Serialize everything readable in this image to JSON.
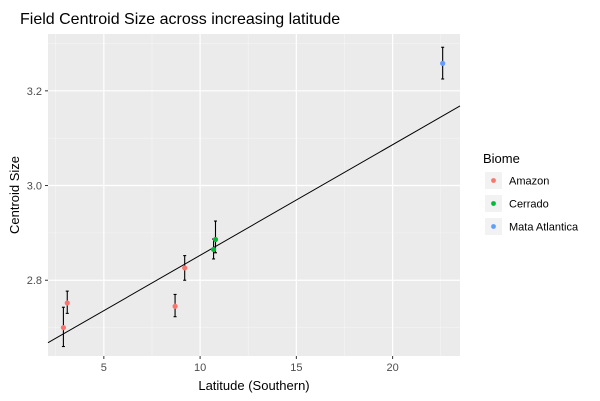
{
  "chart_data": {
    "type": "scatter",
    "title": "Field Centroid Size across increasing latitude",
    "xlabel": "Latitude (Southern)",
    "ylabel": "Centroid Size",
    "xlim": [
      2.1,
      23.5
    ],
    "ylim": [
      2.64,
      3.32
    ],
    "xticks": [
      5,
      10,
      15,
      20
    ],
    "yticks": [
      2.8,
      3.0,
      3.2
    ],
    "ytick_labels": [
      "2.8",
      "3.0",
      "3.2"
    ],
    "grid": true,
    "legend": {
      "title": "Biome",
      "placement": "right"
    },
    "series": [
      {
        "name": "Amazon",
        "color": "#f8766d",
        "points": [
          {
            "x": 2.9,
            "y": 2.7,
            "ymin": 2.66,
            "ymax": 2.743
          },
          {
            "x": 3.1,
            "y": 2.752,
            "ymin": 2.73,
            "ymax": 2.777
          },
          {
            "x": 8.7,
            "y": 2.745,
            "ymin": 2.723,
            "ymax": 2.77
          },
          {
            "x": 9.2,
            "y": 2.826,
            "ymin": 2.8,
            "ymax": 2.852
          }
        ]
      },
      {
        "name": "Cerrado",
        "color": "#00ba38",
        "points": [
          {
            "x": 10.7,
            "y": 2.865,
            "ymin": 2.845,
            "ymax": 2.887
          },
          {
            "x": 10.8,
            "y": 2.886,
            "ymin": 2.858,
            "ymax": 2.925
          }
        ]
      },
      {
        "name": "Mata Atlantica",
        "color": "#619cff",
        "points": [
          {
            "x": 22.6,
            "y": 3.258,
            "ymin": 3.225,
            "ymax": 3.292
          }
        ]
      }
    ],
    "trend_line": {
      "x": [
        2.1,
        23.5
      ],
      "y": [
        2.668,
        3.168
      ]
    }
  }
}
